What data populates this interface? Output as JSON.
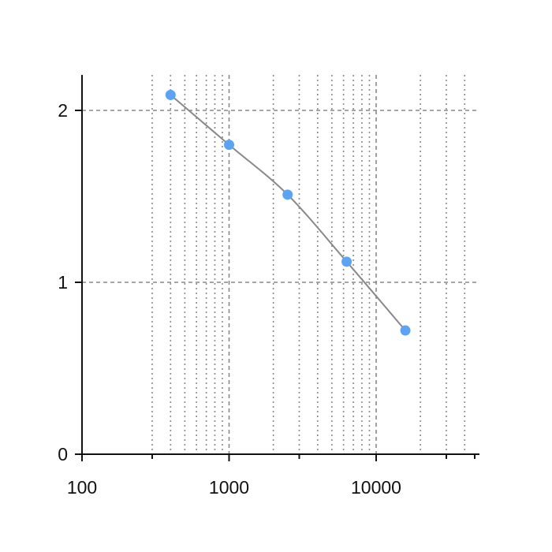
{
  "chart_data": {
    "type": "scatter",
    "x_scale": "log",
    "xlim": [
      100,
      50000
    ],
    "ylim": [
      0,
      2.2
    ],
    "x_ticks": [
      100,
      1000,
      10000
    ],
    "x_tick_labels": [
      "100",
      "1000",
      "10000"
    ],
    "y_ticks": [
      0,
      1,
      2
    ],
    "y_tick_labels": [
      "0",
      "1",
      "2"
    ],
    "grid": "major dashed, minor dotted",
    "series": [
      {
        "color": "#5ba3f5",
        "line_color": "#888888",
        "points": [
          {
            "x": 400,
            "y": 2.09
          },
          {
            "x": 1000,
            "y": 1.8
          },
          {
            "x": 2500,
            "y": 1.51
          },
          {
            "x": 6300,
            "y": 1.12
          },
          {
            "x": 15800,
            "y": 0.72
          }
        ]
      }
    ]
  }
}
